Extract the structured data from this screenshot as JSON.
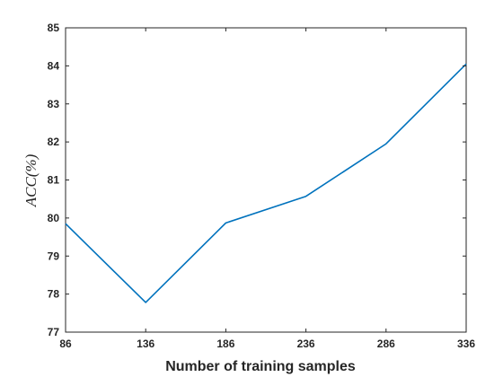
{
  "chart_data": {
    "type": "line",
    "title": "",
    "xlabel": "Number of training samples",
    "ylabel": "ACC(%)",
    "x": [
      86,
      136,
      186,
      236,
      286,
      336
    ],
    "series": [
      {
        "values": [
          79.85,
          77.78,
          79.87,
          80.57,
          81.95,
          84.05
        ],
        "color": "#0072BD"
      }
    ],
    "xlim": [
      86,
      336
    ],
    "ylim": [
      77,
      85
    ],
    "xticks": [
      "86",
      "136",
      "186",
      "236",
      "286",
      "336"
    ],
    "yticks": [
      "77",
      "78",
      "79",
      "80",
      "81",
      "82",
      "83",
      "84",
      "85"
    ],
    "grid": false,
    "legend": "none"
  }
}
